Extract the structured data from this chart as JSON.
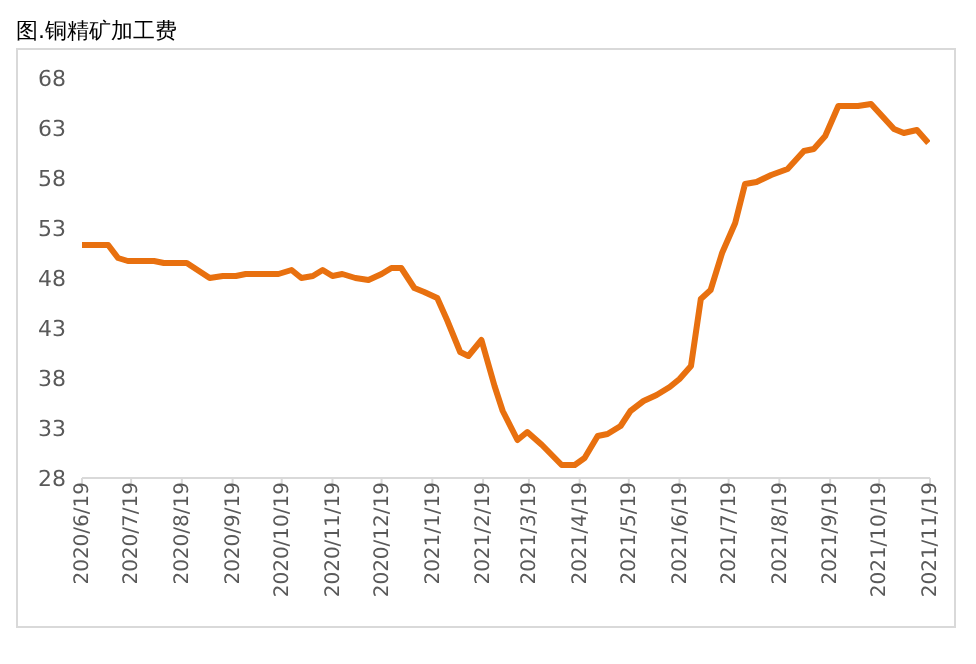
{
  "chart_data": {
    "type": "line",
    "title": "图.铜精矿加工费",
    "x": [
      "2020-06-19",
      "2020-07-05",
      "2020-07-11",
      "2020-07-17",
      "2020-08-02",
      "2020-08-08",
      "2020-08-22",
      "2020-09-05",
      "2020-09-13",
      "2020-09-21",
      "2020-09-27",
      "2020-10-17",
      "2020-10-25",
      "2020-10-31",
      "2020-11-07",
      "2020-11-13",
      "2020-11-19",
      "2020-11-25",
      "2020-12-03",
      "2020-12-11",
      "2020-12-19",
      "2020-12-25",
      "2020-12-31",
      "2021-01-08",
      "2021-01-14",
      "2021-01-22",
      "2021-01-28",
      "2021-02-05",
      "2021-02-10",
      "2021-02-18",
      "2021-02-26",
      "2021-03-03",
      "2021-03-12",
      "2021-03-18",
      "2021-03-27",
      "2021-04-08",
      "2021-04-16",
      "2021-04-22",
      "2021-04-30",
      "2021-05-06",
      "2021-05-14",
      "2021-05-20",
      "2021-05-28",
      "2021-06-05",
      "2021-06-13",
      "2021-06-19",
      "2021-06-26",
      "2021-07-02",
      "2021-07-08",
      "2021-07-15",
      "2021-07-23",
      "2021-07-29",
      "2021-08-05",
      "2021-08-14",
      "2021-08-24",
      "2021-09-03",
      "2021-09-09",
      "2021-09-16",
      "2021-09-24",
      "2021-10-06",
      "2021-10-14",
      "2021-10-28",
      "2021-11-03",
      "2021-11-11",
      "2021-11-18"
    ],
    "series": [
      {
        "color": "#e8700f",
        "values": [
          51.3,
          51.3,
          50.0,
          49.7,
          49.7,
          49.5,
          49.5,
          48.0,
          48.2,
          48.2,
          48.4,
          48.4,
          48.8,
          48.0,
          48.2,
          48.8,
          48.2,
          48.4,
          48.0,
          47.8,
          48.4,
          49.0,
          49.0,
          47.0,
          46.6,
          46.0,
          43.8,
          40.6,
          40.2,
          41.8,
          37.2,
          34.7,
          31.8,
          32.6,
          31.3,
          29.3,
          29.3,
          30.0,
          32.2,
          32.4,
          33.2,
          34.7,
          35.7,
          36.3,
          37.1,
          37.9,
          39.2,
          45.9,
          46.8,
          50.5,
          53.5,
          57.4,
          57.6,
          58.3,
          58.9,
          60.7,
          60.9,
          62.2,
          65.2,
          65.2,
          65.4,
          62.9,
          62.5,
          62.8,
          61.5
        ]
      }
    ],
    "xlim": [
      "2020-06-19",
      "2021-11-19"
    ],
    "xticks": [
      {
        "value": "2020-06-19",
        "label": "2020/6/19"
      },
      {
        "value": "2020-07-19",
        "label": "2020/7/19"
      },
      {
        "value": "2020-08-19",
        "label": "2020/8/19"
      },
      {
        "value": "2020-09-19",
        "label": "2020/9/19"
      },
      {
        "value": "2020-10-19",
        "label": "2020/10/19"
      },
      {
        "value": "2020-11-19",
        "label": "2020/11/19"
      },
      {
        "value": "2020-12-19",
        "label": "2020/12/19"
      },
      {
        "value": "2021-01-19",
        "label": "2021/1/19"
      },
      {
        "value": "2021-02-19",
        "label": "2021/2/19"
      },
      {
        "value": "2021-03-19",
        "label": "2021/3/19"
      },
      {
        "value": "2021-04-19",
        "label": "2021/4/19"
      },
      {
        "value": "2021-05-19",
        "label": "2021/5/19"
      },
      {
        "value": "2021-06-19",
        "label": "2021/6/19"
      },
      {
        "value": "2021-07-19",
        "label": "2021/7/19"
      },
      {
        "value": "2021-08-19",
        "label": "2021/8/19"
      },
      {
        "value": "2021-09-19",
        "label": "2021/9/19"
      },
      {
        "value": "2021-10-19",
        "label": "2021/10/19"
      },
      {
        "value": "2021-11-19",
        "label": "2021/11/19"
      }
    ],
    "ylim": [
      28,
      68
    ],
    "yticks": [
      28,
      33,
      38,
      43,
      48,
      53,
      58,
      63,
      68
    ],
    "grid": false,
    "legend": false,
    "marker": "none",
    "line_style": "solid"
  }
}
